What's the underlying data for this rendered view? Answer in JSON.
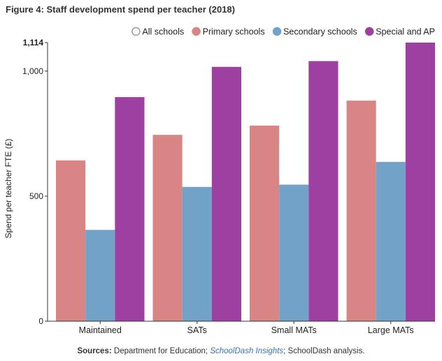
{
  "chart_data": {
    "type": "bar",
    "title": "Figure 4: Staff development spend per teacher (2018)",
    "ylabel": "Spend per teacher FTE (£)",
    "xlabel": "",
    "ylim": [
      0,
      1114
    ],
    "yticks": [
      0,
      500,
      1000,
      1114
    ],
    "ytick_labels": [
      "0",
      "500",
      "1,000",
      "1,114"
    ],
    "categories": [
      "Maintained",
      "SATs",
      "Small MATs",
      "Large MATs"
    ],
    "legend_position": "top-right",
    "legend_items": [
      {
        "name": "All schools",
        "color": "#ffffff",
        "marker": "hollow",
        "shown_in_plot": false
      },
      {
        "name": "Primary schools",
        "color": "#d98585"
      },
      {
        "name": "Secondary schools",
        "color": "#72a2c8"
      },
      {
        "name": "Special and AP",
        "color": "#9e3fa2"
      }
    ],
    "series": [
      {
        "name": "Primary schools",
        "color": "#d98585",
        "values": [
          643,
          745,
          782,
          882
        ]
      },
      {
        "name": "Secondary schools",
        "color": "#72a2c8",
        "values": [
          365,
          537,
          546,
          637
        ]
      },
      {
        "name": "Special and AP",
        "color": "#9e3fa2",
        "values": [
          896,
          1017,
          1040,
          1114
        ]
      }
    ]
  },
  "footer": {
    "sources_label": "Sources:",
    "sources_text_1": " Department for Education; ",
    "sources_link": "SchoolDash Insights",
    "sources_text_2": "; SchoolDash analysis."
  }
}
